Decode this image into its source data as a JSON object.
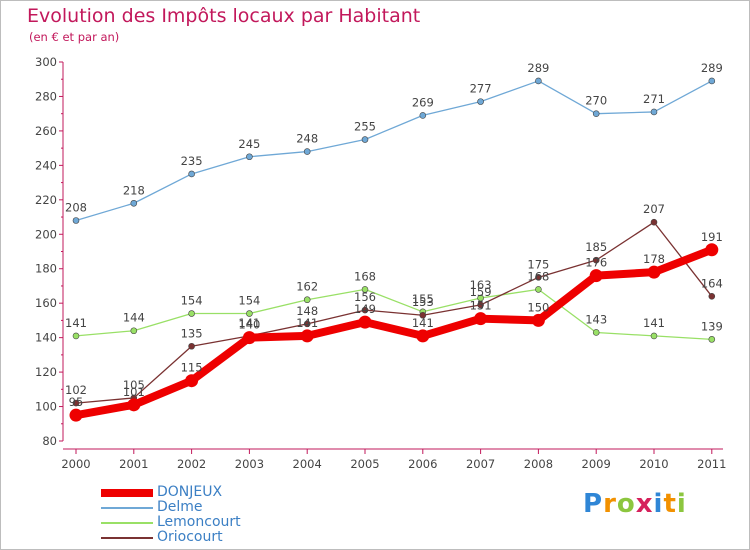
{
  "chart_data": {
    "type": "line",
    "title": "Evolution des Impôts locaux par Habitant",
    "subtitle": "(en € et par an)",
    "xlabel": "",
    "ylabel": "",
    "ylim": [
      80,
      300
    ],
    "y_ticks": [
      80,
      100,
      120,
      140,
      160,
      180,
      200,
      220,
      240,
      260,
      280,
      300
    ],
    "categories": [
      "2000",
      "2001",
      "2002",
      "2003",
      "2004",
      "2005",
      "2006",
      "2007",
      "2008",
      "2009",
      "2010",
      "2011"
    ],
    "series": [
      {
        "name": "DONJEUX",
        "color": "#ee0000",
        "emphasis": "bold",
        "values": [
          95,
          101,
          115,
          140,
          141,
          149,
          141,
          151,
          150,
          176,
          178,
          191
        ],
        "labels": [
          "95",
          "101",
          "115",
          "140",
          "141",
          "149",
          "141",
          "151",
          "150",
          "176",
          "178",
          "191"
        ]
      },
      {
        "name": "Delme",
        "color": "#6fa8d6",
        "emphasis": "normal",
        "values": [
          208,
          218,
          235,
          245,
          248,
          255,
          269,
          277,
          289,
          270,
          271,
          289
        ],
        "labels": [
          "208",
          "218",
          "235",
          "245",
          "248",
          "255",
          "269",
          "277",
          "289",
          "270",
          "271",
          "289"
        ]
      },
      {
        "name": "Lemoncourt",
        "color": "#99e066",
        "emphasis": "normal",
        "values": [
          141,
          144,
          154,
          154,
          162,
          168,
          155,
          163,
          168,
          143,
          141,
          139
        ],
        "labels": [
          "141",
          "144",
          "154",
          "154",
          "162",
          "168",
          "155",
          "163",
          "168",
          "143",
          "141",
          "139"
        ]
      },
      {
        "name": "Oriocourt",
        "color": "#7a3232",
        "emphasis": "normal",
        "values": [
          102,
          105,
          135,
          141,
          148,
          156,
          153,
          159,
          175,
          185,
          207,
          164
        ],
        "labels": [
          "102",
          "105",
          "135",
          "141",
          "148",
          "156",
          "153",
          "159",
          "175",
          "185",
          "207",
          "164"
        ]
      }
    ],
    "grid": false,
    "legend_position": "bottom-left"
  },
  "brand": {
    "letters": [
      "P",
      "r",
      "o",
      "x",
      "i",
      "t",
      "i"
    ],
    "colors": [
      "#2f86d6",
      "#f29100",
      "#8cc63f",
      "#d6215b",
      "#2f86d6",
      "#f29100",
      "#8cc63f"
    ]
  }
}
